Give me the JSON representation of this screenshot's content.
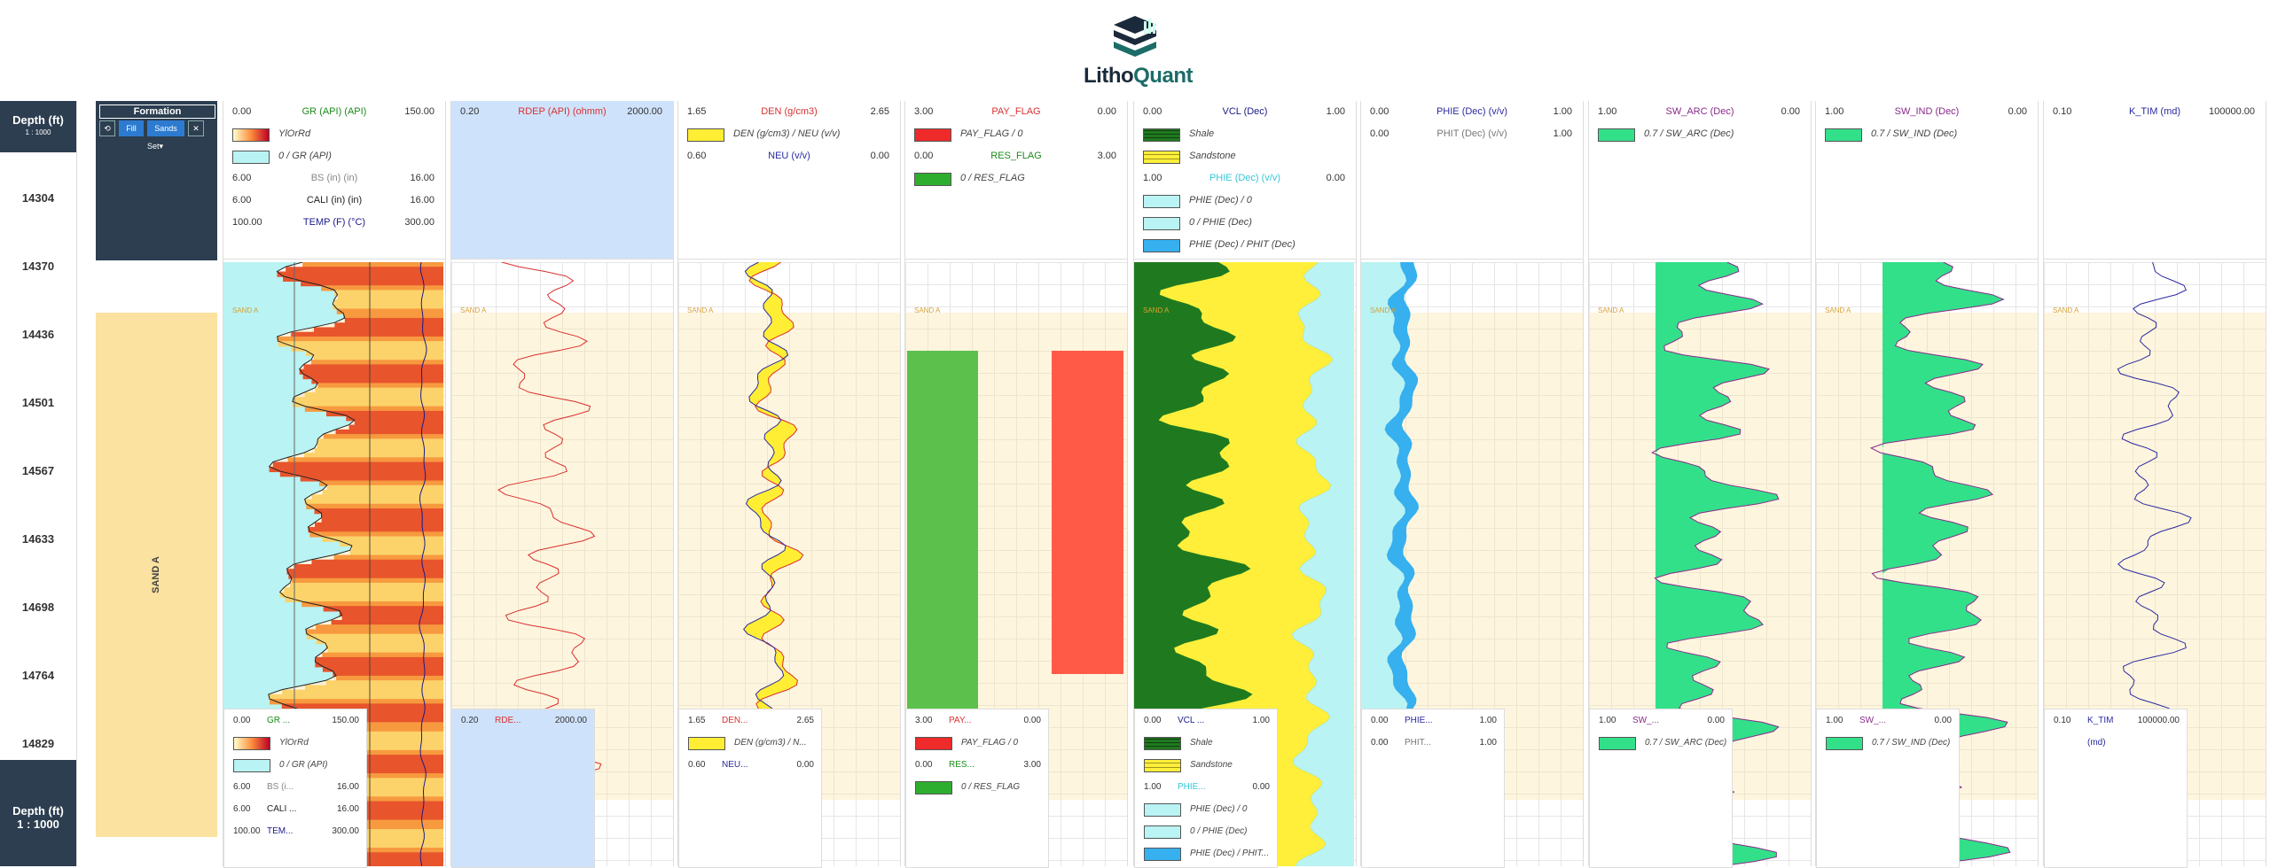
{
  "app": {
    "brand_main": "Litho",
    "brand_accent": "Quant"
  },
  "depth_track": {
    "title": "Depth (ft)",
    "scale": "1 : 1000",
    "labels": [
      "14304",
      "14370",
      "14436",
      "14501",
      "14567",
      "14633",
      "14698",
      "14764",
      "14829"
    ]
  },
  "formation_track": {
    "title": "Formation",
    "buttons": [
      "⟲",
      "Fill",
      "Sands",
      "✕"
    ],
    "set_label": "Set",
    "zone": "SAND A"
  },
  "zone_tag": "SAND A",
  "tracks": [
    {
      "id": "gr",
      "rows": [
        {
          "kind": "curve",
          "left": "0.00",
          "name": "GR (API) (API)",
          "right": "150.00",
          "color": "#1a8a1a"
        },
        {
          "kind": "swatch",
          "fill": "ylorrd",
          "label": "YlOrRd"
        },
        {
          "kind": "swatch",
          "fill": "#b9f3f3",
          "label": "0 / GR (API)"
        },
        {
          "kind": "curve",
          "left": "6.00",
          "name": "BS (in) (in)",
          "right": "16.00",
          "color": "#888888"
        },
        {
          "kind": "curve",
          "left": "6.00",
          "name": "CALI (in) (in)",
          "right": "16.00",
          "color": "#222222"
        },
        {
          "kind": "curve",
          "left": "100.00",
          "name": "TEMP (F) (°C)",
          "right": "300.00",
          "color": "#1a1a8a"
        }
      ],
      "footer": [
        {
          "kind": "curve",
          "left": "0.00",
          "name": "GR ...",
          "right": "150.00",
          "color": "#1a8a1a"
        },
        {
          "kind": "swatch",
          "fill": "ylorrd",
          "label": "YlOrRd"
        },
        {
          "kind": "swatch",
          "fill": "#b9f3f3",
          "label": "0 / GR (API)"
        },
        {
          "kind": "curve",
          "left": "6.00",
          "name": "BS (i...",
          "right": "16.00",
          "color": "#888888"
        },
        {
          "kind": "curve",
          "left": "6.00",
          "name": "CALI ...",
          "right": "16.00",
          "color": "#222222"
        },
        {
          "kind": "curve",
          "left": "100.00",
          "name": "TEM...",
          "right": "300.00",
          "color": "#1a1a8a"
        }
      ]
    },
    {
      "id": "rdep",
      "rows": [
        {
          "kind": "curve",
          "left": "0.20",
          "name": "RDEP (API) (ohmm)",
          "right": "2000.00",
          "color": "#d93030"
        }
      ],
      "footer": [
        {
          "kind": "curve",
          "left": "0.20",
          "name": "RDE...",
          "right": "2000.00",
          "color": "#d93030"
        }
      ]
    },
    {
      "id": "den",
      "rows": [
        {
          "kind": "curve",
          "left": "1.65",
          "name": "DEN (g/cm3)",
          "right": "2.65",
          "color": "#d93030"
        },
        {
          "kind": "swatch",
          "fill": "#ffee33",
          "label": "DEN (g/cm3) / NEU (v/v)"
        },
        {
          "kind": "curve",
          "left": "0.60",
          "name": "NEU (v/v)",
          "right": "0.00",
          "color": "#2a2aa0"
        }
      ],
      "footer": [
        {
          "kind": "curve",
          "left": "1.65",
          "name": "DEN...",
          "right": "2.65",
          "color": "#d93030"
        },
        {
          "kind": "swatch",
          "fill": "#ffee33",
          "label": "DEN (g/cm3) / N..."
        },
        {
          "kind": "curve",
          "left": "0.60",
          "name": "NEU...",
          "right": "0.00",
          "color": "#2a2aa0"
        }
      ]
    },
    {
      "id": "flags",
      "rows": [
        {
          "kind": "curve",
          "left": "3.00",
          "name": "PAY_FLAG",
          "right": "0.00",
          "color": "#d93030"
        },
        {
          "kind": "swatch",
          "fill": "#ee2a2a",
          "label": "PAY_FLAG / 0"
        },
        {
          "kind": "curve",
          "left": "0.00",
          "name": "RES_FLAG",
          "right": "3.00",
          "color": "#1a8a1a"
        },
        {
          "kind": "swatch",
          "fill": "#2eae2e",
          "label": "0 / RES_FLAG"
        }
      ],
      "footer": [
        {
          "kind": "curve",
          "left": "3.00",
          "name": "PAY...",
          "right": "0.00",
          "color": "#d93030"
        },
        {
          "kind": "swatch",
          "fill": "#ee2a2a",
          "label": "PAY_FLAG / 0"
        },
        {
          "kind": "curve",
          "left": "0.00",
          "name": "RES...",
          "right": "3.00",
          "color": "#1a8a1a"
        },
        {
          "kind": "swatch",
          "fill": "#2eae2e",
          "label": "0 / RES_FLAG"
        }
      ]
    },
    {
      "id": "vcl",
      "rows": [
        {
          "kind": "curve",
          "left": "0.00",
          "name": "VCL (Dec)",
          "right": "1.00",
          "color": "#1a1a8a"
        },
        {
          "kind": "swatch",
          "fill": "shale",
          "label": "Shale"
        },
        {
          "kind": "swatch",
          "fill": "sand",
          "label": "Sandstone"
        },
        {
          "kind": "curve",
          "left": "1.00",
          "name": "PHIE (Dec) (v/v)",
          "right": "0.00",
          "color": "#33c8d8"
        },
        {
          "kind": "swatch",
          "fill": "#b9f3f3",
          "label": "PHIE (Dec) / 0"
        },
        {
          "kind": "swatch",
          "fill": "#b9f3f3",
          "label": "0 / PHIE (Dec)"
        },
        {
          "kind": "swatch",
          "fill": "#36b0ee",
          "label": "PHIE (Dec) / PHIT (Dec)"
        }
      ],
      "footer": [
        {
          "kind": "curve",
          "left": "0.00",
          "name": "VCL ...",
          "right": "1.00",
          "color": "#1a1a8a"
        },
        {
          "kind": "swatch",
          "fill": "shale",
          "label": "Shale"
        },
        {
          "kind": "swatch",
          "fill": "sand",
          "label": "Sandstone"
        },
        {
          "kind": "curve",
          "left": "1.00",
          "name": "PHIE...",
          "right": "0.00",
          "color": "#33c8d8"
        },
        {
          "kind": "swatch",
          "fill": "#b9f3f3",
          "label": "PHIE (Dec) / 0"
        },
        {
          "kind": "swatch",
          "fill": "#b9f3f3",
          "label": "0 / PHIE (Dec)"
        },
        {
          "kind": "swatch",
          "fill": "#36b0ee",
          "label": "PHIE (Dec) / PHIT..."
        }
      ]
    },
    {
      "id": "phie",
      "rows": [
        {
          "kind": "curve",
          "left": "0.00",
          "name": "PHIE (Dec) (v/v)",
          "right": "1.00",
          "color": "#2a2aa0"
        },
        {
          "kind": "curve",
          "left": "0.00",
          "name": "PHIT (Dec) (v/v)",
          "right": "1.00",
          "color": "#777777"
        }
      ],
      "footer": [
        {
          "kind": "curve",
          "left": "0.00",
          "name": "PHIE...",
          "right": "1.00",
          "color": "#2a2aa0"
        },
        {
          "kind": "curve",
          "left": "0.00",
          "name": "PHIT...",
          "right": "1.00",
          "color": "#777777"
        }
      ]
    },
    {
      "id": "swarc",
      "rows": [
        {
          "kind": "curve",
          "left": "1.00",
          "name": "SW_ARC (Dec)",
          "right": "0.00",
          "color": "#8a2a8a"
        },
        {
          "kind": "swatch",
          "fill": "#33e08a",
          "label": "0.7 / SW_ARC (Dec)"
        }
      ],
      "footer": [
        {
          "kind": "curve",
          "left": "1.00",
          "name": "SW_...",
          "right": "0.00",
          "color": "#8a2a8a"
        },
        {
          "kind": "swatch",
          "fill": "#33e08a",
          "label": "0.7 / SW_ARC (Dec)"
        }
      ]
    },
    {
      "id": "swind",
      "rows": [
        {
          "kind": "curve",
          "left": "1.00",
          "name": "SW_IND (Dec)",
          "right": "0.00",
          "color": "#8a2a8a"
        },
        {
          "kind": "swatch",
          "fill": "#33e08a",
          "label": "0.7 / SW_IND (Dec)"
        }
      ],
      "footer": [
        {
          "kind": "curve",
          "left": "1.00",
          "name": "SW_...",
          "right": "0.00",
          "color": "#8a2a8a"
        },
        {
          "kind": "swatch",
          "fill": "#33e08a",
          "label": "0.7 / SW_IND (Dec)"
        }
      ]
    },
    {
      "id": "ktim",
      "rows": [
        {
          "kind": "curve",
          "left": "0.10",
          "name": "K_TIM (md)",
          "right": "100000.00",
          "color": "#2a2aa0"
        }
      ],
      "footer": [
        {
          "kind": "curve",
          "left": "0.10",
          "name": "K_TIM (md)",
          "right": "100000.00",
          "color": "#2a2aa0"
        }
      ]
    }
  ]
}
